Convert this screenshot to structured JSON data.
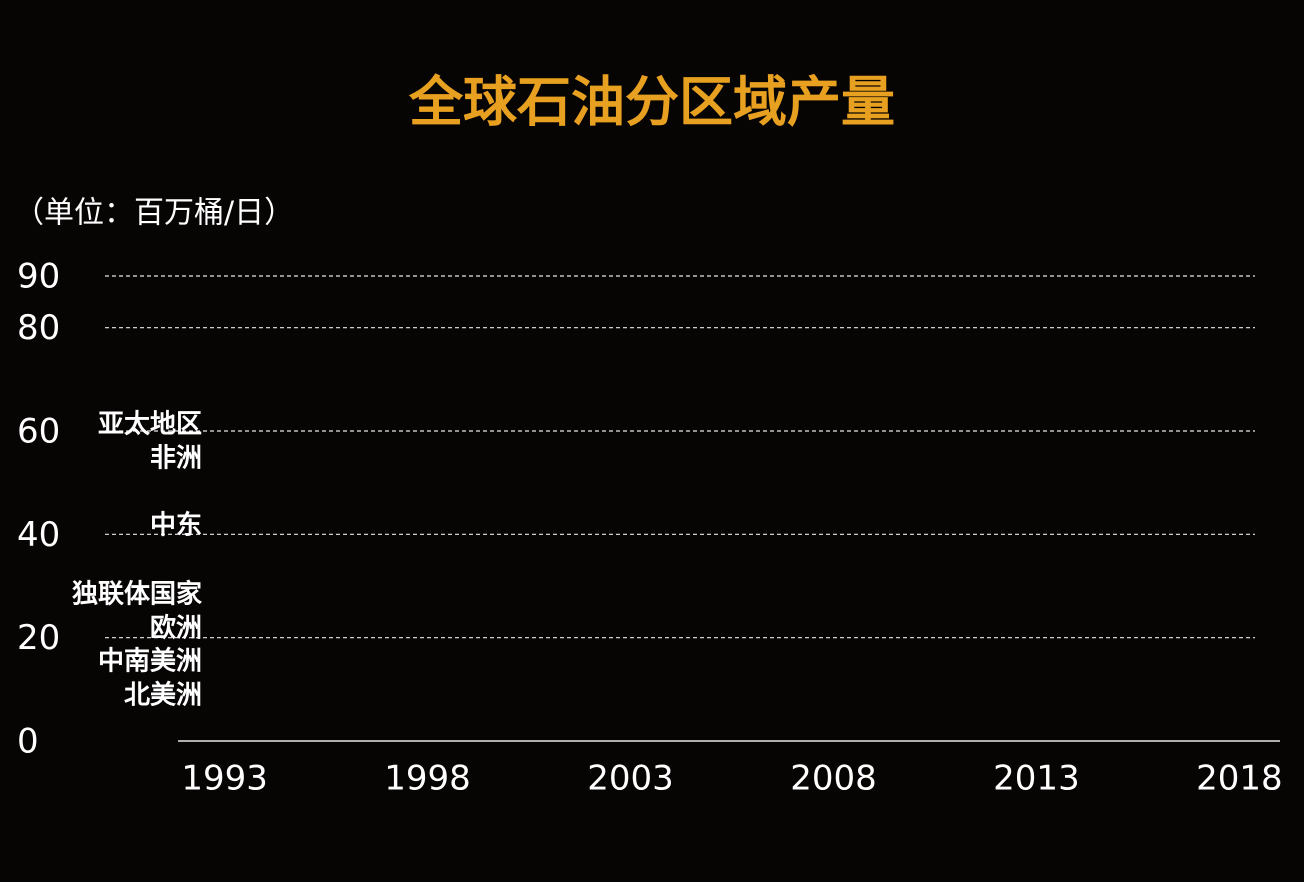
{
  "chart_data": {
    "type": "area",
    "title": "全球石油分区域产量",
    "y_label": "（单位：百万桶/日）",
    "xlim": [
      1992,
      2019
    ],
    "xticks": [
      1993,
      1998,
      2003,
      2008,
      2013,
      2018
    ],
    "ylim": [
      0,
      90
    ],
    "yticks": [
      0,
      20,
      40,
      60,
      80,
      90
    ],
    "grid": true,
    "title_color": "#e8a020",
    "series": [
      {
        "name": "亚太地区"
      },
      {
        "name": "非洲"
      },
      {
        "name": "中东"
      },
      {
        "name": "独联体国家"
      },
      {
        "name": "欧洲"
      },
      {
        "name": "中南美洲"
      },
      {
        "name": "北美洲"
      }
    ]
  }
}
